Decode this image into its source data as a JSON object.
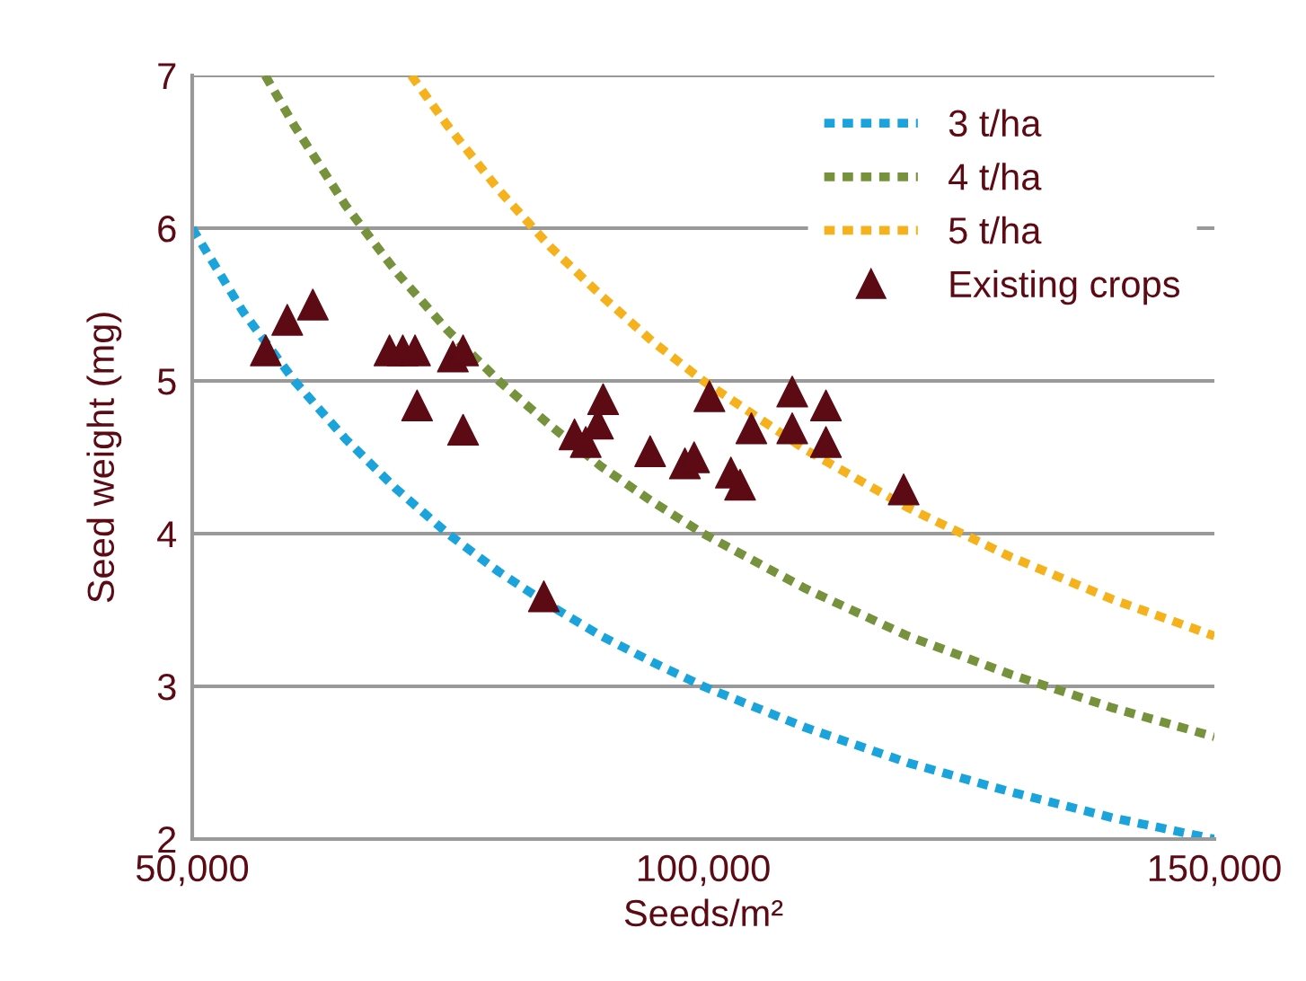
{
  "chart_data": {
    "type": "scatter",
    "xlabel": "Seeds/m²",
    "ylabel": "Seed weight (mg)",
    "xlim": [
      50000,
      150000
    ],
    "xticks": [
      {
        "value": 50000,
        "label": "50,000"
      },
      {
        "value": 100000,
        "label": "100,000"
      },
      {
        "value": 150000,
        "label": "150,000"
      }
    ],
    "ylim": [
      2,
      7
    ],
    "yticks": [
      2,
      3,
      4,
      5,
      6,
      7
    ],
    "grid": "y",
    "legend": "top right",
    "series": [
      {
        "name": "3 t/ha",
        "type": "line",
        "line_style": "dotted",
        "color": "#1ba3dc",
        "x": [
          50000,
          55000,
          60000,
          65000,
          70000,
          75000,
          80000,
          85000,
          90000,
          95000,
          100000,
          110000,
          120000,
          130000,
          140000,
          150000
        ],
        "values": [
          6.0,
          5.45,
          5.0,
          4.62,
          4.29,
          4.0,
          3.75,
          3.53,
          3.33,
          3.16,
          3.0,
          2.73,
          2.5,
          2.31,
          2.14,
          2.0
        ]
      },
      {
        "name": "4 t/ha",
        "type": "line",
        "line_style": "dotted",
        "color": "#77923c",
        "x": [
          57143,
          60000,
          65000,
          70000,
          75000,
          80000,
          85000,
          90000,
          95000,
          100000,
          110000,
          120000,
          130000,
          140000,
          150000
        ],
        "values": [
          7.0,
          6.67,
          6.15,
          5.71,
          5.33,
          5.0,
          4.71,
          4.44,
          4.21,
          4.0,
          3.64,
          3.33,
          3.08,
          2.86,
          2.67
        ]
      },
      {
        "name": "5 t/ha",
        "type": "line",
        "line_style": "dotted",
        "color": "#f5b21d",
        "x": [
          71429,
          75000,
          80000,
          85000,
          90000,
          95000,
          100000,
          110000,
          120000,
          130000,
          140000,
          150000
        ],
        "values": [
          7.0,
          6.67,
          6.25,
          5.88,
          5.56,
          5.26,
          5.0,
          4.55,
          4.17,
          3.85,
          3.57,
          3.33
        ]
      },
      {
        "name": "Existing crops",
        "marker": "triangle",
        "color": "#5c0a14",
        "x": [
          57200,
          59300,
          61800,
          69300,
          70600,
          71800,
          72000,
          75500,
          76500,
          76500,
          84400,
          87400,
          88500,
          89700,
          90200,
          94800,
          98200,
          99100,
          100600,
          102700,
          103600,
          104700,
          108700,
          108700,
          112000,
          112000,
          119600
        ],
        "values": [
          5.2,
          5.4,
          5.5,
          5.2,
          5.2,
          5.2,
          4.84,
          5.16,
          5.2,
          4.68,
          3.59,
          4.65,
          4.6,
          4.72,
          4.88,
          4.54,
          4.46,
          4.5,
          4.9,
          4.4,
          4.32,
          4.69,
          4.93,
          4.69,
          4.84,
          4.6,
          4.29
        ]
      }
    ]
  }
}
